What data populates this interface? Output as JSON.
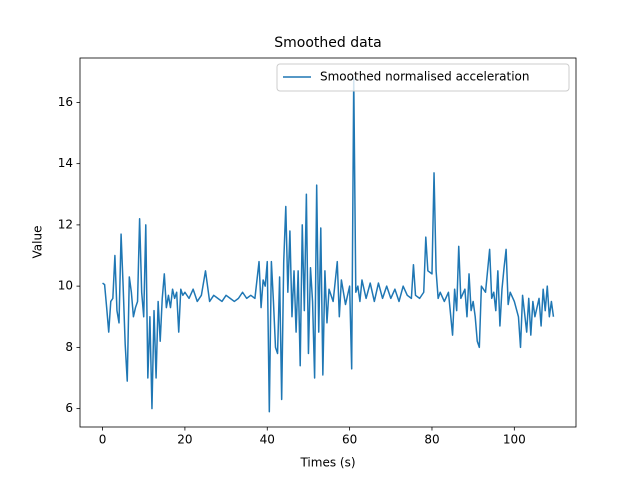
{
  "chart_data": {
    "type": "line",
    "title": "Smoothed data",
    "x_label": "Times (s)",
    "y_label": "Value",
    "x": [
      0,
      0.5,
      1,
      1.5,
      2,
      2.5,
      3,
      3.5,
      4,
      4.5,
      5,
      5.5,
      6,
      6.5,
      7,
      7.5,
      8,
      8.5,
      9,
      9.5,
      10,
      10.5,
      11,
      11.5,
      12,
      12.5,
      13,
      13.5,
      14,
      14.5,
      15,
      15.5,
      16,
      16.5,
      17,
      17.5,
      18,
      18.5,
      19,
      19.5,
      20,
      21,
      22,
      23,
      24,
      25,
      26,
      27,
      28,
      29,
      30,
      31,
      32,
      33,
      34,
      35,
      36,
      37,
      38,
      38.5,
      39,
      39.5,
      40,
      40.5,
      41,
      41.5,
      42,
      42.5,
      43,
      43.5,
      44,
      44.5,
      45,
      45.5,
      46,
      46.5,
      47,
      47.5,
      48,
      48.5,
      49,
      49.5,
      50,
      50.5,
      51,
      51.5,
      52,
      52.5,
      53,
      53.5,
      54,
      54.5,
      55,
      56,
      57,
      57.5,
      58,
      59,
      60,
      60.5,
      61,
      61.5,
      62,
      62.5,
      63,
      64,
      65,
      66,
      67,
      68,
      69,
      70,
      71,
      72,
      73,
      74,
      75,
      75.5,
      76,
      77,
      78,
      78.5,
      79,
      80,
      80.5,
      81,
      81.5,
      82,
      83,
      84,
      85,
      85.5,
      86,
      86.5,
      87,
      88,
      88.5,
      89,
      89.5,
      90,
      90.5,
      91,
      91.5,
      92,
      93,
      94,
      94.5,
      95,
      95.5,
      96,
      96.5,
      97,
      97.5,
      98,
      98.5,
      99,
      100,
      101,
      101.5,
      102,
      103,
      103.5,
      104,
      104.5,
      105,
      106,
      106.5,
      107,
      107.5,
      108,
      108.5,
      109,
      109.5
    ],
    "series": [
      {
        "name": "Smoothed normalised acceleration",
        "color": "#1f77b4",
        "values": [
          10.1,
          10.05,
          9.3,
          8.5,
          9.5,
          9.6,
          11.0,
          9.2,
          8.8,
          11.7,
          10.0,
          8.1,
          6.9,
          10.3,
          9.8,
          9.0,
          9.3,
          9.5,
          12.2,
          9.8,
          9.0,
          12.0,
          7.0,
          9.0,
          6.0,
          9.2,
          7.0,
          9.5,
          8.2,
          9.6,
          10.4,
          9.3,
          9.7,
          9.3,
          9.9,
          9.6,
          9.8,
          8.5,
          9.9,
          9.7,
          9.8,
          9.6,
          9.9,
          9.5,
          9.7,
          10.5,
          9.5,
          9.7,
          9.6,
          9.5,
          9.7,
          9.6,
          9.5,
          9.6,
          9.8,
          9.6,
          9.7,
          9.6,
          10.8,
          9.3,
          10.2,
          10.0,
          10.8,
          5.9,
          10.8,
          9.5,
          8.0,
          7.8,
          10.3,
          6.3,
          10.8,
          12.6,
          9.8,
          11.8,
          9.0,
          10.5,
          8.5,
          10.5,
          7.4,
          12.0,
          9.2,
          13.0,
          7.8,
          10.6,
          9.5,
          7.0,
          13.3,
          8.5,
          11.9,
          7.1,
          10.5,
          8.8,
          9.9,
          9.5,
          10.8,
          9.0,
          10.2,
          9.4,
          10.0,
          7.3,
          16.8,
          9.8,
          10.0,
          9.5,
          10.2,
          9.6,
          10.1,
          9.5,
          10.1,
          9.6,
          10.0,
          9.6,
          9.9,
          9.5,
          10.0,
          9.7,
          9.6,
          10.7,
          9.7,
          9.6,
          9.8,
          11.6,
          10.5,
          10.4,
          13.7,
          10.5,
          9.6,
          9.8,
          9.5,
          9.8,
          8.4,
          9.9,
          9.2,
          11.3,
          9.6,
          9.9,
          9.0,
          10.4,
          9.2,
          9.5,
          9.0,
          8.2,
          8.0,
          10.0,
          9.8,
          11.2,
          9.6,
          9.8,
          9.2,
          10.5,
          8.7,
          9.9,
          10.6,
          11.2,
          9.4,
          9.8,
          9.5,
          9.0,
          8.0,
          9.7,
          8.5,
          9.6,
          8.4,
          9.5,
          9.0,
          9.6,
          8.7,
          9.9,
          9.2,
          10.0,
          9.0,
          9.5,
          9.0
        ]
      }
    ],
    "xlim": [
      -5.475,
      114.975
    ],
    "ylim": [
      5.4,
      17.45
    ],
    "xticks": [
      0,
      20,
      40,
      60,
      80,
      100
    ],
    "yticks": [
      6,
      8,
      10,
      12,
      14,
      16
    ],
    "legend": "upper right",
    "grid": false
  }
}
